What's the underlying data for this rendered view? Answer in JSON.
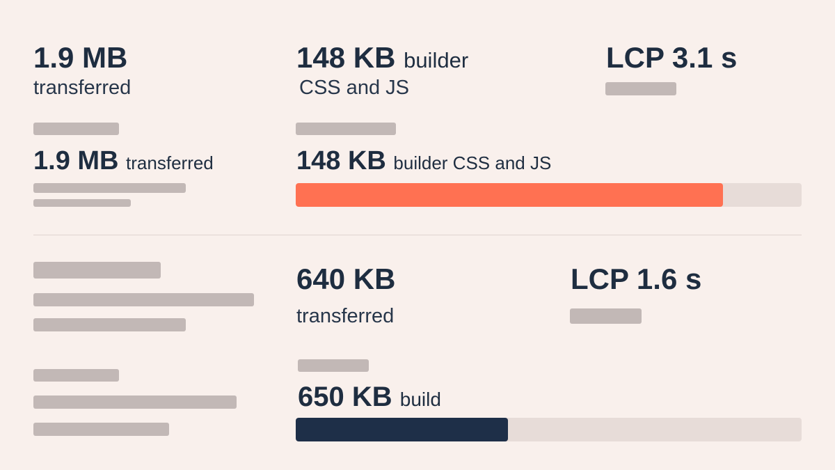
{
  "top": {
    "col1": {
      "stat_value": "1.9 MB",
      "stat_label": "transferred",
      "inline_value": "1.9 MB",
      "inline_label": "transferred"
    },
    "col2": {
      "stat_value": "148 KB",
      "stat_unit": "builder",
      "stat_label": "CSS and JS",
      "inline_value": "148 KB",
      "inline_label": "builder CSS and JS",
      "bar_fraction": 0.845,
      "bar_color": "#ff7152"
    },
    "col3": {
      "stat_value": "LCP 3.1 s"
    }
  },
  "bottom": {
    "col2": {
      "stat_value": "640 KB",
      "stat_label": "transferred",
      "inline_value": "650 KB",
      "inline_label": "build",
      "bar_fraction": 0.42,
      "bar_color": "#1e2f48"
    },
    "col3": {
      "stat_value": "LCP 1.6 s"
    }
  },
  "colors": {
    "background": "#f9f0ec",
    "text": "#1e2d40",
    "placeholder": "#c2b8b6",
    "track": "#e7dcd8"
  }
}
